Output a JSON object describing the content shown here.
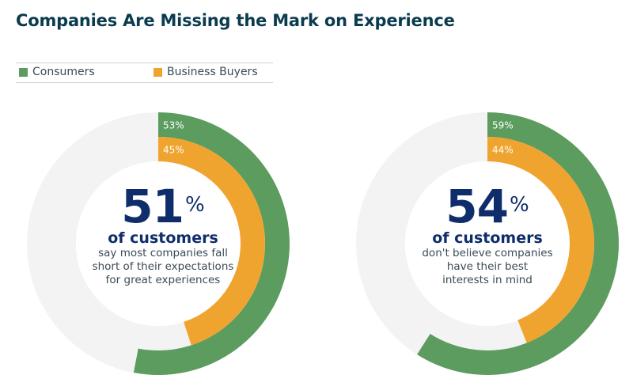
{
  "title": "Companies Are Missing the Mark on Experience",
  "legend": [
    {
      "label": "Consumers",
      "color": "#5c9c5e"
    },
    {
      "label": "Business Buyers",
      "color": "#f0a430"
    }
  ],
  "colors": {
    "track": "#f3f3f3",
    "consumers": "#5c9c5e",
    "business": "#f0a430"
  },
  "chart_data": [
    {
      "type": "donut",
      "series": [
        {
          "name": "Consumers",
          "value": 53,
          "label": "53%"
        },
        {
          "name": "Business Buyers",
          "value": 45,
          "label": "45%"
        }
      ],
      "headline_value": "51",
      "headline_unit": "%",
      "subheading": "of customers",
      "description": [
        "say most companies fall",
        "short of their expectations",
        "for great experiences"
      ]
    },
    {
      "type": "donut",
      "series": [
        {
          "name": "Consumers",
          "value": 59,
          "label": "59%"
        },
        {
          "name": "Business Buyers",
          "value": 44,
          "label": "44%"
        }
      ],
      "headline_value": "54",
      "headline_unit": "%",
      "subheading": "of customers",
      "description": [
        "don't believe companies",
        "have their best",
        "interests in mind"
      ]
    }
  ]
}
